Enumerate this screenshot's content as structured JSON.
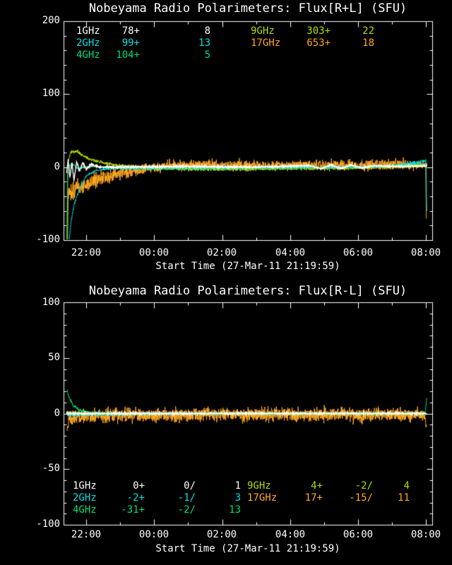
{
  "colors": {
    "background": "#000000",
    "axis": "#FFFFFF"
  },
  "chart_data": [
    {
      "type": "line",
      "title": "Nobeyama Radio Polarimeters: Flux[R+L] (SFU)",
      "xlabel": "Start Time (27-Mar-11 21:19:59)",
      "x_hours_range": [
        21.333,
        32.183
      ],
      "xticks": [
        {
          "h": 22,
          "label": "22:00"
        },
        {
          "h": 24,
          "label": "00:00"
        },
        {
          "h": 26,
          "label": "02:00"
        },
        {
          "h": 28,
          "label": "04:00"
        },
        {
          "h": 30,
          "label": "06:00"
        },
        {
          "h": 32,
          "label": "08:00"
        }
      ],
      "xminor_every_hours": 1,
      "ylim": [
        -100,
        200
      ],
      "yticks": [
        {
          "v": 200,
          "label": "200"
        },
        {
          "v": 100,
          "label": "100"
        },
        {
          "v": 0,
          "label": "0"
        },
        {
          "v": -100,
          "label": "-100"
        }
      ],
      "yminor_every": 20,
      "legend_left": [
        {
          "label": "1GHz",
          "color": "#FFFFFF",
          "values": [
            "78+",
            "8"
          ]
        },
        {
          "label": "2GHz",
          "color": "#00E0E0",
          "values": [
            "99+",
            "13"
          ]
        },
        {
          "label": "4GHz",
          "color": "#00DD77",
          "values": [
            "104+",
            "5"
          ]
        }
      ],
      "legend_right": [
        {
          "label": "9GHz",
          "color": "#B2DD00",
          "values": [
            "303+",
            "22"
          ]
        },
        {
          "label": "17GHz",
          "color": "#FFA820",
          "values": [
            "653+",
            "18"
          ]
        }
      ],
      "series": [
        {
          "name": "17GHz",
          "color": "#FFA820",
          "seed": 11,
          "width": 1,
          "keyframes": [
            [
              21.45,
              -100,
              2
            ],
            [
              21.47,
              -35,
              14
            ],
            [
              21.8,
              -28,
              13
            ],
            [
              22.2,
              -20,
              12
            ],
            [
              22.7,
              -12,
              10
            ],
            [
              23.2,
              -6,
              9
            ],
            [
              23.8,
              -1,
              8
            ],
            [
              24.5,
              2,
              8
            ],
            [
              26,
              3,
              8
            ],
            [
              28,
              2,
              8
            ],
            [
              30,
              3,
              8
            ],
            [
              31.5,
              4,
              8
            ],
            [
              31.99,
              3,
              6
            ],
            [
              32.01,
              -70,
              1
            ]
          ]
        },
        {
          "name": "9GHz",
          "color": "#B2DD00",
          "seed": 23,
          "width": 1,
          "keyframes": [
            [
              21.44,
              -100,
              1
            ],
            [
              21.46,
              8,
              2
            ],
            [
              21.55,
              20,
              3
            ],
            [
              21.7,
              22,
              3
            ],
            [
              21.9,
              16,
              3
            ],
            [
              22.1,
              11,
              2.5
            ],
            [
              22.5,
              6,
              2.5
            ],
            [
              23,
              2,
              2.5
            ],
            [
              24,
              -2,
              2.5
            ],
            [
              26,
              -3,
              2.5
            ],
            [
              28,
              -2,
              2.5
            ],
            [
              30,
              -1,
              2.5
            ],
            [
              31.5,
              1,
              2.5
            ],
            [
              32.03,
              3,
              2.5
            ]
          ]
        },
        {
          "name": "4GHz",
          "color": "#00DD77",
          "seed": 37,
          "width": 1,
          "keyframes": [
            [
              21.43,
              -100,
              1
            ],
            [
              21.45,
              -10,
              2
            ],
            [
              21.5,
              2,
              2
            ],
            [
              21.6,
              4,
              2
            ],
            [
              21.75,
              -2,
              2
            ],
            [
              22,
              1,
              1.5
            ],
            [
              23,
              -1,
              1.5
            ],
            [
              26,
              -2,
              1.5
            ],
            [
              29,
              -1,
              1.5
            ],
            [
              31,
              1,
              1.5
            ],
            [
              32.03,
              4,
              2
            ]
          ]
        },
        {
          "name": "2GHz",
          "color": "#00E0E0",
          "seed": 51,
          "width": 1,
          "keyframes": [
            [
              21.5,
              -100,
              1
            ],
            [
              21.55,
              -75,
              2
            ],
            [
              21.65,
              -50,
              2
            ],
            [
              21.8,
              -30,
              2
            ],
            [
              22.0,
              -12,
              1.5
            ],
            [
              22.3,
              -4,
              1.5
            ],
            [
              22.8,
              -2,
              1.2
            ],
            [
              24,
              -2,
              1.2
            ],
            [
              26,
              -1,
              1.2
            ],
            [
              28,
              -1,
              1.2
            ],
            [
              30,
              0,
              1.5
            ],
            [
              31,
              2,
              2
            ],
            [
              31.7,
              6,
              2.5
            ],
            [
              31.97,
              9,
              2
            ],
            [
              32.0,
              10,
              1
            ],
            [
              32.02,
              -60,
              0.5
            ]
          ]
        },
        {
          "name": "1GHz",
          "color": "#FFFFFF",
          "seed": 67,
          "width": 1.4,
          "keyframes": [
            [
              21.42,
              -8,
              2
            ],
            [
              21.47,
              10,
              2
            ],
            [
              21.52,
              -14,
              2
            ],
            [
              21.58,
              6,
              2
            ],
            [
              21.64,
              -18,
              1
            ],
            [
              21.72,
              8,
              2
            ],
            [
              21.8,
              -6,
              2
            ],
            [
              21.9,
              6,
              1.5
            ],
            [
              22.0,
              -3,
              1.5
            ],
            [
              22.15,
              4,
              1.5
            ],
            [
              22.4,
              0,
              1.2
            ],
            [
              23,
              0,
              1.2
            ],
            [
              25,
              1,
              1.2
            ],
            [
              27,
              0,
              1.2
            ],
            [
              28.6,
              2,
              1
            ],
            [
              28.9,
              -2,
              1
            ],
            [
              29.2,
              3,
              1
            ],
            [
              29.5,
              -2,
              1
            ],
            [
              29.8,
              3,
              1
            ],
            [
              30.1,
              -1,
              1
            ],
            [
              30.5,
              2,
              1
            ],
            [
              31,
              1,
              1
            ],
            [
              32.03,
              2,
              1
            ]
          ]
        }
      ]
    },
    {
      "type": "line",
      "title": "Nobeyama Radio Polarimeters: Flux[R-L] (SFU)",
      "xlabel": "Start Time (27-Mar-11 21:19:59)",
      "x_hours_range": [
        21.333,
        32.183
      ],
      "xticks": [
        {
          "h": 22,
          "label": "22:00"
        },
        {
          "h": 24,
          "label": "00:00"
        },
        {
          "h": 26,
          "label": "02:00"
        },
        {
          "h": 28,
          "label": "04:00"
        },
        {
          "h": 30,
          "label": "06:00"
        },
        {
          "h": 32,
          "label": "08:00"
        }
      ],
      "xminor_every_hours": 1,
      "ylim": [
        -100,
        100
      ],
      "yticks": [
        {
          "v": 100,
          "label": "100"
        },
        {
          "v": 50,
          "label": "50"
        },
        {
          "v": 0,
          "label": "0"
        },
        {
          "v": -50,
          "label": "-50"
        },
        {
          "v": -100,
          "label": "-100"
        }
      ],
      "yminor_every": 10,
      "legend_left": [
        {
          "label": "1GHz",
          "color": "#FFFFFF",
          "values": [
            "0+",
            "0/",
            "1"
          ]
        },
        {
          "label": "2GHz",
          "color": "#00E0E0",
          "values": [
            "-2+",
            "-1/",
            "3"
          ]
        },
        {
          "label": "4GHz",
          "color": "#00DD77",
          "values": [
            "-31+",
            "-2/",
            "13"
          ]
        }
      ],
      "legend_right": [
        {
          "label": "9GHz",
          "color": "#B2DD00",
          "values": [
            "4+",
            "-2/",
            "4"
          ]
        },
        {
          "label": "17GHz",
          "color": "#FFA820",
          "values": [
            "17+",
            "-15/",
            "11"
          ]
        }
      ],
      "series": [
        {
          "name": "17GHz",
          "color": "#FFA820",
          "seed": 91,
          "width": 1,
          "keyframes": [
            [
              21.44,
              -15,
              4
            ],
            [
              21.5,
              -5,
              7
            ],
            [
              22,
              -2,
              7
            ],
            [
              24,
              -1.5,
              7
            ],
            [
              26,
              -1,
              6.5
            ],
            [
              28,
              -1,
              7
            ],
            [
              30,
              -1,
              7
            ],
            [
              31.95,
              -1,
              6
            ],
            [
              32.01,
              -12,
              2
            ]
          ]
        },
        {
          "name": "9GHz",
          "color": "#B2DD00",
          "seed": 103,
          "width": 1,
          "keyframes": [
            [
              21.44,
              1,
              2
            ],
            [
              22,
              0,
              1.6
            ],
            [
              32.02,
              0,
              1.6
            ]
          ]
        },
        {
          "name": "4GHz",
          "color": "#00DD77",
          "seed": 117,
          "width": 1,
          "keyframes": [
            [
              21.43,
              22,
              1
            ],
            [
              21.5,
              14,
              1.5
            ],
            [
              21.62,
              7,
              1.5
            ],
            [
              21.8,
              3,
              1.5
            ],
            [
              22.1,
              1,
              1.2
            ],
            [
              23,
              0,
              1.2
            ],
            [
              31.98,
              0,
              1.2
            ],
            [
              32.02,
              14,
              0.5
            ]
          ]
        },
        {
          "name": "2GHz",
          "color": "#00E0E0",
          "seed": 129,
          "width": 1,
          "keyframes": [
            [
              21.45,
              -2,
              1
            ],
            [
              22,
              -1,
              1
            ],
            [
              28,
              0,
              1
            ],
            [
              32.02,
              0,
              1
            ]
          ]
        },
        {
          "name": "1GHz",
          "color": "#FFFFFF",
          "seed": 143,
          "width": 1.3,
          "keyframes": [
            [
              21.42,
              0,
              0.8
            ],
            [
              32.02,
              0,
              0.8
            ]
          ]
        }
      ]
    }
  ]
}
